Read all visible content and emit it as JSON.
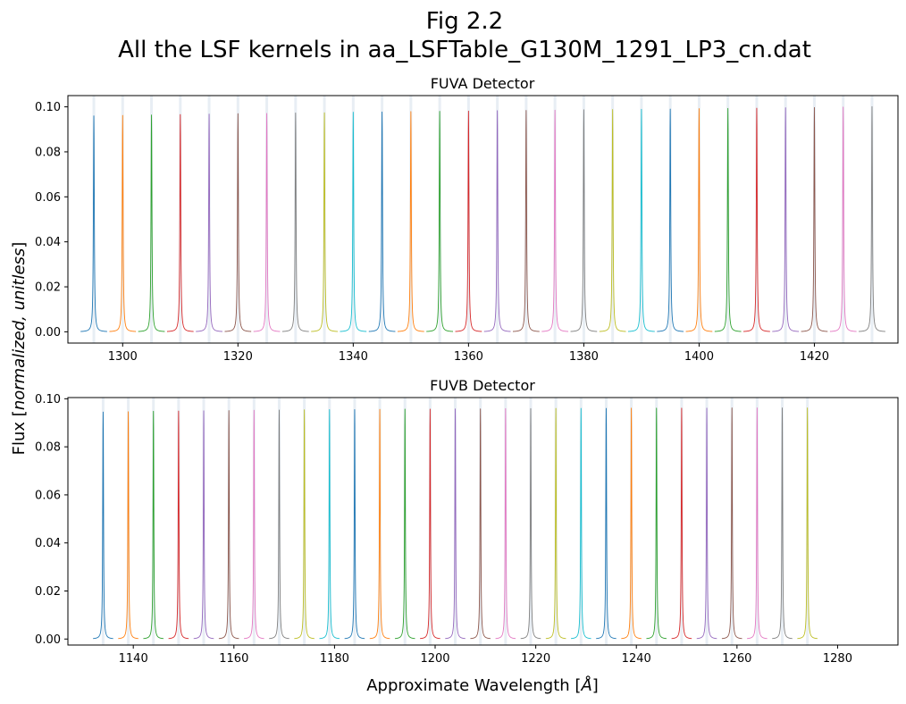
{
  "figure": {
    "title_line1": "Fig 2.2",
    "title_line2": "All the LSF kernels in aa_LSFTable_G130M_1291_LP3_cn.dat",
    "ylabel_prefix": "Flux [",
    "ylabel_italic": "normalized, unitless",
    "ylabel_suffix": "]",
    "xlabel_prefix": "Approximate Wavelength [",
    "xlabel_unit": "Å",
    "xlabel_suffix": "]"
  },
  "chart_data": [
    {
      "type": "line",
      "title": "FUVA Detector",
      "xlabel": "",
      "ylabel": "Flux [normalized, unitless]",
      "xlim": [
        1290.5,
        1434.5
      ],
      "ylim": [
        -0.005,
        0.105
      ],
      "xticks": [
        1300,
        1320,
        1340,
        1360,
        1380,
        1400,
        1420
      ],
      "yticks": [
        0.0,
        0.02,
        0.04,
        0.06,
        0.08,
        0.1
      ],
      "ytick_labels": [
        "0.00",
        "0.02",
        "0.04",
        "0.06",
        "0.08",
        "0.10"
      ],
      "kernel_half_width": 2.3,
      "kernel_hwhm": 0.09,
      "centers": [
        1295,
        1300,
        1305,
        1310,
        1315,
        1320,
        1325,
        1330,
        1335,
        1340,
        1345,
        1350,
        1355,
        1360,
        1365,
        1370,
        1375,
        1380,
        1385,
        1390,
        1395,
        1400,
        1405,
        1410,
        1415,
        1420,
        1425,
        1430
      ],
      "peaks": [
        0.096,
        0.0962,
        0.0964,
        0.0966,
        0.0968,
        0.097,
        0.0971,
        0.0973,
        0.0974,
        0.0976,
        0.0977,
        0.0979,
        0.098,
        0.0981,
        0.0983,
        0.0984,
        0.0985,
        0.0987,
        0.0988,
        0.0989,
        0.099,
        0.0992,
        0.0993,
        0.0994,
        0.0996,
        0.0997,
        0.0999,
        0.1001
      ]
    },
    {
      "type": "line",
      "title": "FUVB Detector",
      "xlabel": "Approximate Wavelength [Å]",
      "ylabel": "Flux [normalized, unitless]",
      "xlim": [
        1127,
        1292
      ],
      "ylim": [
        -0.0025,
        0.1005
      ],
      "xticks": [
        1140,
        1160,
        1180,
        1200,
        1220,
        1240,
        1260,
        1280
      ],
      "yticks": [
        0.0,
        0.02,
        0.04,
        0.06,
        0.08,
        0.1
      ],
      "ytick_labels": [
        "0.00",
        "0.02",
        "0.04",
        "0.06",
        "0.08",
        "0.10"
      ],
      "kernel_half_width": 2.0,
      "kernel_hwhm": 0.09,
      "centers": [
        1134,
        1139,
        1144,
        1149,
        1154,
        1159,
        1164,
        1169,
        1174,
        1179,
        1184,
        1189,
        1194,
        1199,
        1204,
        1209,
        1214,
        1219,
        1224,
        1229,
        1234,
        1239,
        1244,
        1249,
        1254,
        1259,
        1264,
        1269,
        1274
      ],
      "peaks": [
        0.0945,
        0.0946,
        0.0948,
        0.0949,
        0.095,
        0.0951,
        0.0952,
        0.0953,
        0.0954,
        0.0955,
        0.0955,
        0.0956,
        0.0957,
        0.0957,
        0.0958,
        0.0958,
        0.0959,
        0.0959,
        0.096,
        0.096,
        0.096,
        0.0961,
        0.0961,
        0.0961,
        0.0961,
        0.0962,
        0.0962,
        0.0962,
        0.0962
      ]
    }
  ],
  "colors": {
    "palette": [
      "#1f77b4",
      "#ff7f0e",
      "#2ca02c",
      "#d62728",
      "#9467bd",
      "#8c564b",
      "#e377c2",
      "#7f7f7f",
      "#bcbd22",
      "#17becf"
    ],
    "guide": "#e8eef4"
  }
}
